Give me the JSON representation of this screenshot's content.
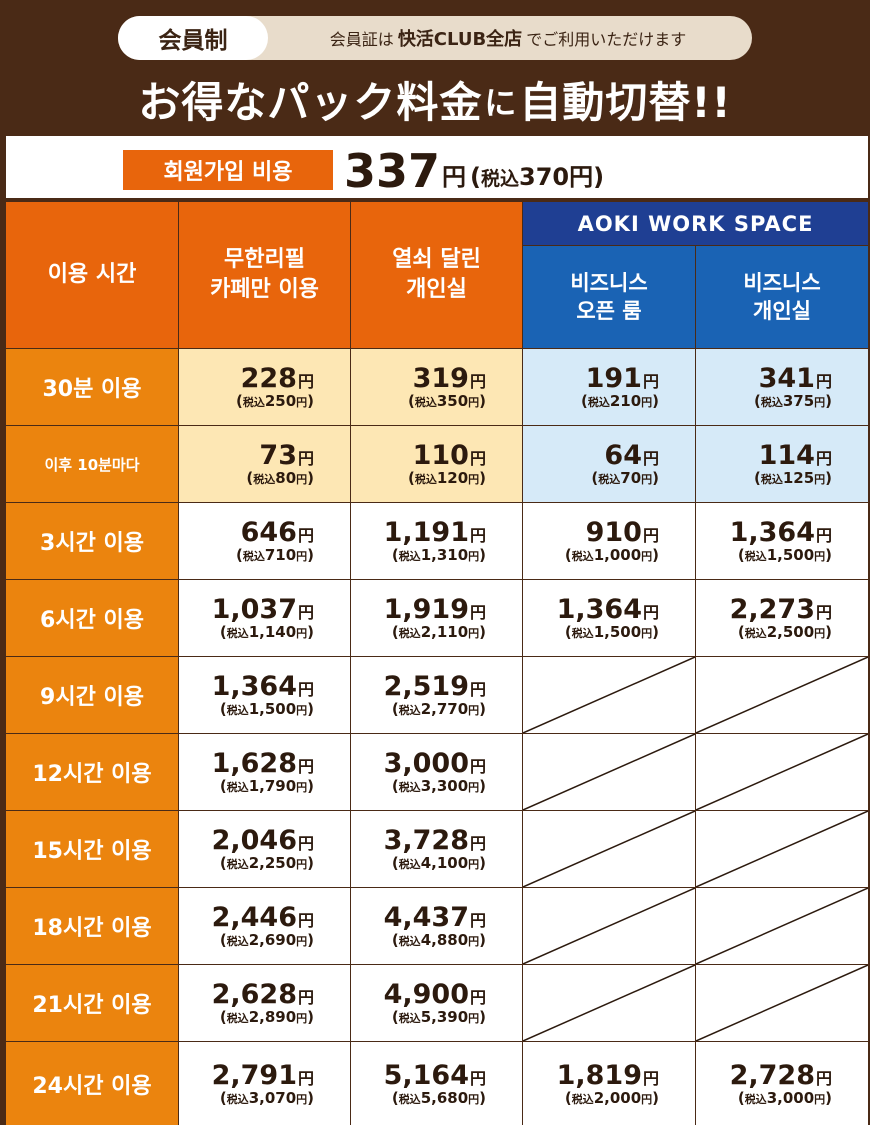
{
  "header": {
    "badge": "会員制",
    "notice_prefix": "会員証は",
    "notice_bold": "快活CLUB全店",
    "notice_suffix": "でご利用いただけます",
    "headline_a": "お得なパック料金",
    "headline_b": "に",
    "headline_c": "自動切替!!"
  },
  "fee": {
    "label": "회원가입 비용",
    "amount": "337",
    "yen": "円",
    "tax_open": "(",
    "tax_prefix": "税込",
    "tax_amount": "370",
    "tax_close": "円)"
  },
  "table": {
    "col_time": "이용 시간",
    "col_cafe_1": "무한리필",
    "col_cafe_2": "카페만 이용",
    "col_private_1": "열쇠 달린",
    "col_private_2": "개인실",
    "group_aoki": "AOKI WORK SPACE",
    "col_biz_open_1": "비즈니스",
    "col_biz_open_2": "오픈 룸",
    "col_biz_private_1": "비즈니스",
    "col_biz_private_2": "개인실",
    "yen": "円",
    "tax_prefix": "税込",
    "rows": [
      {
        "label": "30분 이용",
        "cafe": "228",
        "cafe_tax": "250",
        "private": "319",
        "private_tax": "350",
        "biz_open": "191",
        "biz_open_tax": "210",
        "biz_private": "341",
        "biz_private_tax": "375"
      },
      {
        "label": "이후 10분마다",
        "cafe": "73",
        "cafe_tax": "80",
        "private": "110",
        "private_tax": "120",
        "biz_open": "64",
        "biz_open_tax": "70",
        "biz_private": "114",
        "biz_private_tax": "125"
      },
      {
        "label": "3시간 이용",
        "cafe": "646",
        "cafe_tax": "710",
        "private": "1,191",
        "private_tax": "1,310",
        "biz_open": "910",
        "biz_open_tax": "1,000",
        "biz_private": "1,364",
        "biz_private_tax": "1,500"
      },
      {
        "label": "6시간 이용",
        "cafe": "1,037",
        "cafe_tax": "1,140",
        "private": "1,919",
        "private_tax": "2,110",
        "biz_open": "1,364",
        "biz_open_tax": "1,500",
        "biz_private": "2,273",
        "biz_private_tax": "2,500"
      },
      {
        "label": "9시간 이용",
        "cafe": "1,364",
        "cafe_tax": "1,500",
        "private": "2,519",
        "private_tax": "2,770"
      },
      {
        "label": "12시간 이용",
        "cafe": "1,628",
        "cafe_tax": "1,790",
        "private": "3,000",
        "private_tax": "3,300"
      },
      {
        "label": "15시간 이용",
        "cafe": "2,046",
        "cafe_tax": "2,250",
        "private": "3,728",
        "private_tax": "4,100"
      },
      {
        "label": "18시간 이용",
        "cafe": "2,446",
        "cafe_tax": "2,690",
        "private": "4,437",
        "private_tax": "4,880"
      },
      {
        "label": "21시간 이용",
        "cafe": "2,628",
        "cafe_tax": "2,890",
        "private": "4,900",
        "private_tax": "5,390"
      },
      {
        "label": "24시간 이용",
        "cafe": "2,791",
        "cafe_tax": "3,070",
        "private": "5,164",
        "private_tax": "5,680",
        "biz_open": "1,819",
        "biz_open_tax": "2,000",
        "biz_private": "2,728",
        "biz_private_tax": "3,000"
      }
    ]
  }
}
